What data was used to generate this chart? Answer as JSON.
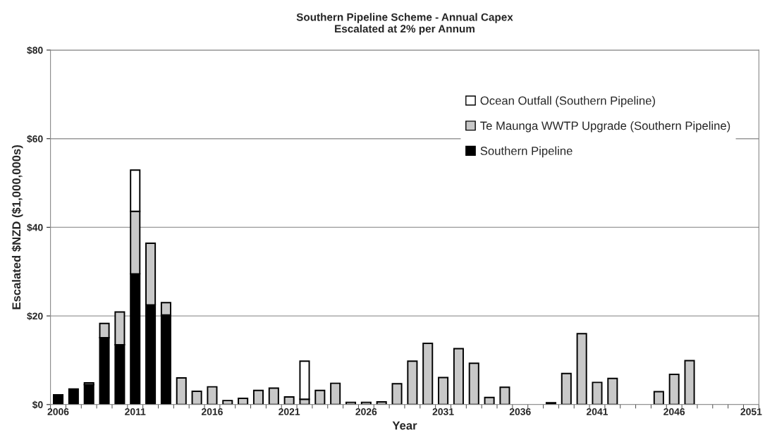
{
  "chart_data": {
    "type": "bar",
    "title": "Southern Pipeline Scheme - Annual Capex\nEscalated at 2% per Annum",
    "xlabel": "Year",
    "ylabel": "Escalated $NZD ($1,000,000s)",
    "categories": [
      "2006",
      null,
      null,
      null,
      null,
      "2011",
      null,
      null,
      null,
      null,
      "2016",
      null,
      null,
      null,
      null,
      "2021",
      null,
      null,
      null,
      null,
      "2026",
      null,
      null,
      null,
      null,
      "2031",
      null,
      null,
      null,
      null,
      "2036",
      null,
      null,
      null,
      null,
      "2041",
      null,
      null,
      null,
      null,
      "2046",
      null,
      null,
      null,
      null,
      "2051"
    ],
    "stacked": true,
    "series": [
      {
        "name": "Southern Pipeline",
        "color": "#000000",
        "values": [
          2.2,
          3.5,
          4.5,
          15.1,
          13.5,
          29.5,
          22.5,
          20.2,
          null,
          null,
          null,
          null,
          null,
          null,
          null,
          null,
          null,
          null,
          null,
          null,
          null,
          null,
          null,
          null,
          null,
          null,
          null,
          null,
          null,
          null,
          null,
          null,
          0.4,
          null,
          null,
          null,
          null,
          null,
          null,
          null,
          null,
          null,
          null,
          null,
          null,
          null
        ]
      },
      {
        "name": "Te Maunga WWTP Upgrade (Southern Pipeline)",
        "color": "#c8c8c8",
        "values": [
          null,
          null,
          0.4,
          3.2,
          7.4,
          14.1,
          13.9,
          2.8,
          6.0,
          3.0,
          4.0,
          0.9,
          1.4,
          3.2,
          3.7,
          1.7,
          1.2,
          3.2,
          4.8,
          0.5,
          0.5,
          0.6,
          4.7,
          9.8,
          13.8,
          6.1,
          12.6,
          9.3,
          1.6,
          3.9,
          null,
          null,
          null,
          7.0,
          16.0,
          5.0,
          5.9,
          null,
          null,
          2.9,
          6.8,
          9.9,
          null,
          null,
          null,
          null
        ]
      },
      {
        "name": "Ocean Outfall (Southern Pipeline)",
        "color": "#ffffff",
        "values": [
          null,
          null,
          null,
          null,
          null,
          9.3,
          null,
          null,
          null,
          null,
          null,
          null,
          null,
          null,
          null,
          null,
          8.6,
          null,
          null,
          null,
          null,
          null,
          null,
          null,
          null,
          null,
          null,
          null,
          null,
          null,
          null,
          null,
          null,
          null,
          null,
          null,
          null,
          null,
          null,
          null,
          null,
          null,
          null,
          null,
          null,
          null
        ]
      }
    ],
    "ylim": [
      0,
      80
    ],
    "yticks": [
      {
        "value": 0,
        "label": "$0"
      },
      {
        "value": 20,
        "label": "$20"
      },
      {
        "value": 40,
        "label": "$40"
      },
      {
        "value": 60,
        "label": "$60"
      },
      {
        "value": 80,
        "label": "$80"
      }
    ],
    "grid": "y",
    "legend": "top right"
  }
}
